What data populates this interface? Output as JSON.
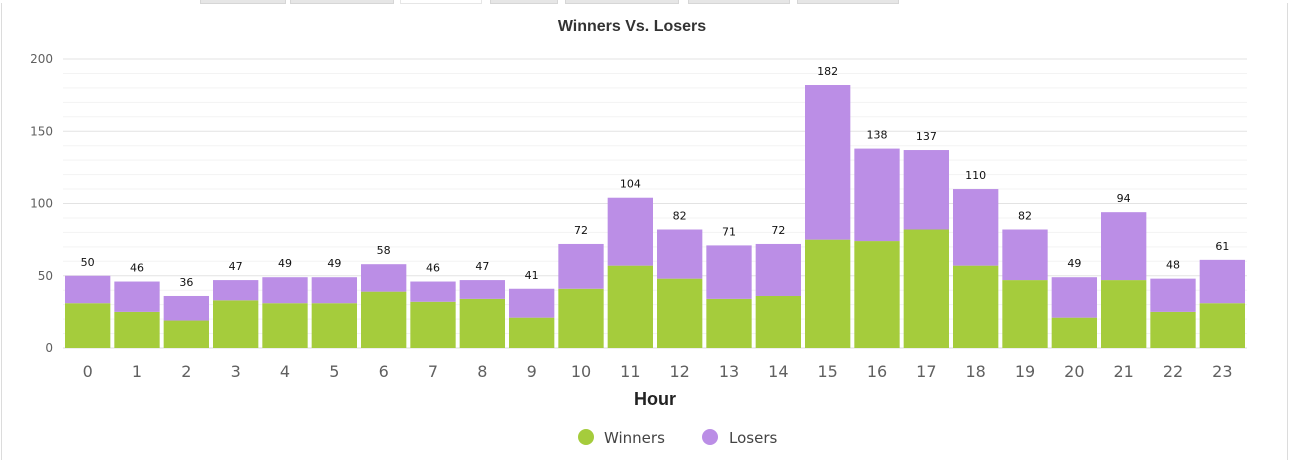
{
  "chart_data": {
    "type": "bar",
    "stacked": true,
    "title": "Winners Vs. Losers",
    "xlabel": "Hour",
    "ylabel": "",
    "ylim": [
      0,
      200
    ],
    "yticks": [
      0,
      50,
      100,
      150,
      200
    ],
    "grid": true,
    "legend": "bottom-center",
    "categories": [
      "0",
      "1",
      "2",
      "3",
      "4",
      "5",
      "6",
      "7",
      "8",
      "9",
      "10",
      "11",
      "12",
      "13",
      "14",
      "15",
      "16",
      "17",
      "18",
      "19",
      "20",
      "21",
      "22",
      "23"
    ],
    "series": [
      {
        "name": "Winners",
        "color": "#a5cc3c",
        "values": [
          31,
          25,
          19,
          33,
          31,
          31,
          39,
          32,
          34,
          21,
          41,
          57,
          48,
          34,
          36,
          75,
          74,
          82,
          57,
          47,
          21,
          47,
          25,
          31
        ]
      },
      {
        "name": "Losers",
        "color": "#bb8ee6",
        "values": [
          19,
          21,
          17,
          14,
          18,
          18,
          19,
          14,
          13,
          20,
          31,
          47,
          34,
          37,
          36,
          107,
          64,
          55,
          53,
          35,
          28,
          47,
          23,
          30
        ]
      }
    ],
    "totals": [
      50,
      46,
      36,
      47,
      49,
      49,
      58,
      46,
      47,
      41,
      72,
      104,
      82,
      71,
      72,
      182,
      138,
      137,
      110,
      82,
      49,
      94,
      48,
      61
    ]
  }
}
